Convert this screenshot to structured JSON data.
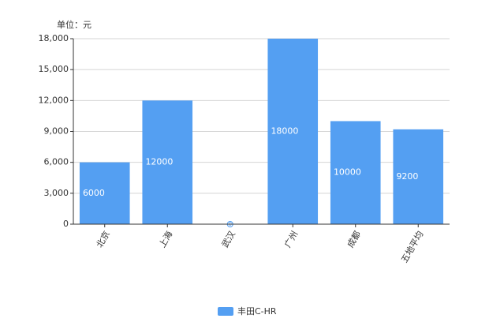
{
  "chart_data": {
    "type": "bar",
    "unit_label": "单位：元",
    "categories": [
      "北京",
      "上海",
      "武汉",
      "广州",
      "成都",
      "五地平均"
    ],
    "series": [
      {
        "name": "丰田C-HR",
        "color": "#549ff2",
        "values": [
          6000,
          12000,
          0,
          18000,
          10000,
          9200
        ]
      }
    ],
    "ylim": [
      0,
      18000
    ],
    "yticks": [
      0,
      {
        "value": 3000,
        "label": "3,000"
      },
      {
        "value": 6000,
        "label": "6,000"
      },
      {
        "value": 9000,
        "label": "9,000"
      },
      {
        "value": 12000,
        "label": "12,000"
      },
      {
        "value": 15000,
        "label": "15,000"
      },
      {
        "value": 18000,
        "label": "18,000"
      }
    ],
    "grid": true,
    "legend": "bottom"
  }
}
